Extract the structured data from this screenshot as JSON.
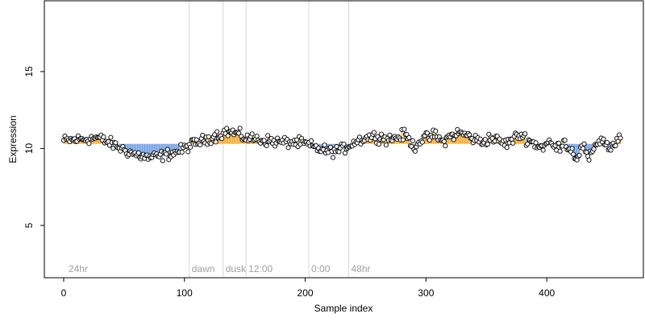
{
  "chart_data": {
    "type": "scatter",
    "xlabel": "Sample index",
    "ylabel": "Expression",
    "xlim": [
      -16,
      480
    ],
    "ylim": [
      1.6,
      19.6
    ],
    "xticks": [
      0,
      100,
      200,
      300,
      400
    ],
    "yticks": [
      5,
      10,
      15
    ],
    "phase_markers": [
      {
        "x": 2,
        "label": "24hr"
      },
      {
        "x": 104,
        "label": "dawn"
      },
      {
        "x": 132,
        "label": "dusk"
      },
      {
        "x": 151,
        "label": "12:00"
      },
      {
        "x": 203,
        "label": "0:00"
      },
      {
        "x": 236,
        "label": "48hr"
      }
    ],
    "trend_knots": [
      [
        0,
        10.5
      ],
      [
        15,
        10.6
      ],
      [
        28,
        10.7
      ],
      [
        40,
        10.3
      ],
      [
        50,
        9.9
      ],
      [
        60,
        9.6
      ],
      [
        70,
        9.4
      ],
      [
        80,
        9.5
      ],
      [
        90,
        9.7
      ],
      [
        98,
        9.9
      ],
      [
        104,
        10.2
      ],
      [
        115,
        10.5
      ],
      [
        125,
        10.8
      ],
      [
        135,
        11.1
      ],
      [
        142,
        11.0
      ],
      [
        150,
        10.7
      ],
      [
        160,
        10.6
      ],
      [
        170,
        10.5
      ],
      [
        180,
        10.4
      ],
      [
        190,
        10.4
      ],
      [
        200,
        10.3
      ],
      [
        210,
        10.0
      ],
      [
        220,
        9.8
      ],
      [
        230,
        9.9
      ],
      [
        240,
        10.4
      ],
      [
        250,
        10.7
      ],
      [
        260,
        10.8
      ],
      [
        268,
        10.6
      ],
      [
        275,
        10.7
      ],
      [
        283,
        10.9
      ],
      [
        290,
        10.1
      ],
      [
        296,
        10.6
      ],
      [
        302,
        10.7
      ],
      [
        308,
        10.9
      ],
      [
        313,
        10.4
      ],
      [
        320,
        10.8
      ],
      [
        327,
        11.0
      ],
      [
        333,
        10.9
      ],
      [
        340,
        10.6
      ],
      [
        347,
        10.4
      ],
      [
        353,
        10.7
      ],
      [
        360,
        10.5
      ],
      [
        366,
        10.3
      ],
      [
        372,
        10.6
      ],
      [
        378,
        10.9
      ],
      [
        384,
        10.6
      ],
      [
        390,
        10.3
      ],
      [
        396,
        10.1
      ],
      [
        402,
        10.4
      ],
      [
        408,
        10.0
      ],
      [
        414,
        10.5
      ],
      [
        420,
        9.9
      ],
      [
        425,
        9.4
      ],
      [
        430,
        10.2
      ],
      [
        435,
        9.2
      ],
      [
        440,
        10.3
      ],
      [
        446,
        10.6
      ],
      [
        452,
        10.0
      ],
      [
        458,
        10.4
      ],
      [
        463,
        10.8
      ]
    ],
    "colors": {
      "above": "#f5a623",
      "below": "#6b9be8",
      "point_stroke": "#000000",
      "point_fill": "#ffffff",
      "guide": "#d8d8d8"
    },
    "n_points": 462
  }
}
